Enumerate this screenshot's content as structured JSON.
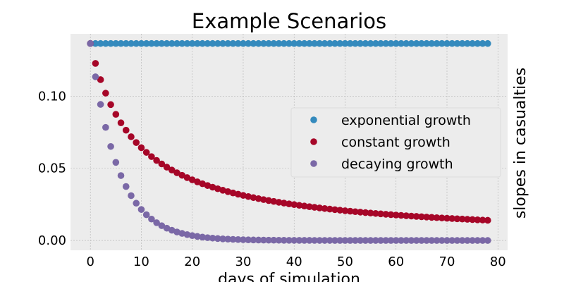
{
  "chart_data": {
    "type": "scatter",
    "title": "Example Scenarios",
    "xlabel": "days of simulation",
    "ylabel": "slopes in casualties",
    "xlim": [
      -3.9,
      81.9
    ],
    "ylim": [
      -0.0068,
      0.1432
    ],
    "xticks": [
      0,
      10,
      20,
      30,
      40,
      50,
      60,
      70,
      80
    ],
    "xtick_labels": [
      "0",
      "10",
      "20",
      "30",
      "40",
      "50",
      "60",
      "70",
      "80"
    ],
    "yticks": [
      0.0,
      0.05,
      0.1
    ],
    "ytick_labels": [
      "0.00",
      "0.05",
      "0.10"
    ],
    "grid": true,
    "legend": "center-right",
    "background": "#ececec",
    "x_range": {
      "start": 0,
      "end": 78,
      "step": 1
    },
    "series": [
      {
        "name": "exponential growth",
        "color": "#348abd",
        "formula": "constant",
        "y0": 0.1365
      },
      {
        "name": "constant growth",
        "color": "#a60628",
        "formula": "hyperbolic",
        "y0": 0.1365,
        "ratio_constant": 8.9
      },
      {
        "name": "decaying growth",
        "color": "#7a68a6",
        "formula": "exponential",
        "y0": 0.1365,
        "decay_rate": 0.185
      }
    ]
  }
}
